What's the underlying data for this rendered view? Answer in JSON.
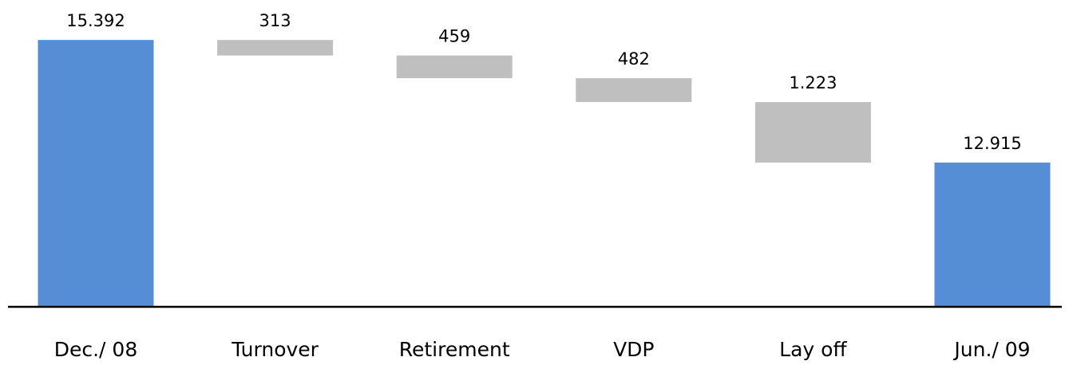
{
  "chart_data": {
    "type": "waterfall",
    "categories": [
      "Dec./ 08",
      "Turnover",
      "Retirement",
      "VDP",
      "Lay off",
      "Jun./ 09"
    ],
    "values": [
      15392,
      313,
      459,
      482,
      1223,
      12915
    ],
    "value_labels": [
      "15.392",
      "313",
      "459",
      "482",
      "1.223",
      "12.915"
    ],
    "measure": [
      "total",
      "decrease",
      "decrease",
      "decrease",
      "decrease",
      "total"
    ],
    "colors": {
      "total": "#558ed5",
      "decrease": "#bfbfbf"
    },
    "ylim": [
      10000,
      16200
    ]
  }
}
